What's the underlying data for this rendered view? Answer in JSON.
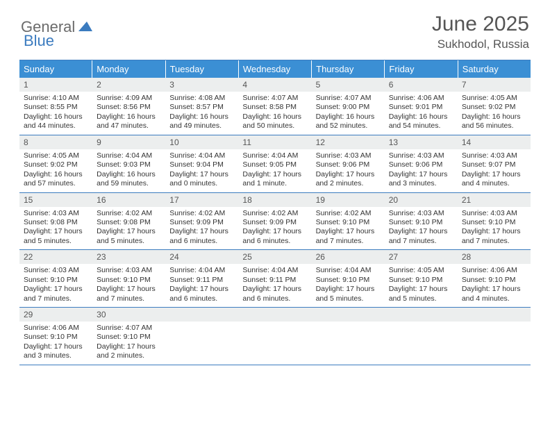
{
  "colors": {
    "header_blue": "#3b8fd4",
    "rule_blue": "#3b7bbf",
    "daynum_bg": "#eceeee",
    "text": "#333333",
    "title_text": "#555555",
    "white": "#ffffff"
  },
  "typography": {
    "title_fontsize": 30,
    "location_fontsize": 17,
    "dayhead_fontsize": 13,
    "daynum_fontsize": 12,
    "body_fontsize": 10.5
  },
  "logo": {
    "part1": "General",
    "part2": "Blue"
  },
  "title": "June 2025",
  "location": "Sukhodol, Russia",
  "day_headers": [
    "Sunday",
    "Monday",
    "Tuesday",
    "Wednesday",
    "Thursday",
    "Friday",
    "Saturday"
  ],
  "weeks": [
    [
      {
        "n": "1",
        "sr": "4:10 AM",
        "ss": "8:55 PM",
        "dl": "16 hours and 44 minutes."
      },
      {
        "n": "2",
        "sr": "4:09 AM",
        "ss": "8:56 PM",
        "dl": "16 hours and 47 minutes."
      },
      {
        "n": "3",
        "sr": "4:08 AM",
        "ss": "8:57 PM",
        "dl": "16 hours and 49 minutes."
      },
      {
        "n": "4",
        "sr": "4:07 AM",
        "ss": "8:58 PM",
        "dl": "16 hours and 50 minutes."
      },
      {
        "n": "5",
        "sr": "4:07 AM",
        "ss": "9:00 PM",
        "dl": "16 hours and 52 minutes."
      },
      {
        "n": "6",
        "sr": "4:06 AM",
        "ss": "9:01 PM",
        "dl": "16 hours and 54 minutes."
      },
      {
        "n": "7",
        "sr": "4:05 AM",
        "ss": "9:02 PM",
        "dl": "16 hours and 56 minutes."
      }
    ],
    [
      {
        "n": "8",
        "sr": "4:05 AM",
        "ss": "9:02 PM",
        "dl": "16 hours and 57 minutes."
      },
      {
        "n": "9",
        "sr": "4:04 AM",
        "ss": "9:03 PM",
        "dl": "16 hours and 59 minutes."
      },
      {
        "n": "10",
        "sr": "4:04 AM",
        "ss": "9:04 PM",
        "dl": "17 hours and 0 minutes."
      },
      {
        "n": "11",
        "sr": "4:04 AM",
        "ss": "9:05 PM",
        "dl": "17 hours and 1 minute."
      },
      {
        "n": "12",
        "sr": "4:03 AM",
        "ss": "9:06 PM",
        "dl": "17 hours and 2 minutes."
      },
      {
        "n": "13",
        "sr": "4:03 AM",
        "ss": "9:06 PM",
        "dl": "17 hours and 3 minutes."
      },
      {
        "n": "14",
        "sr": "4:03 AM",
        "ss": "9:07 PM",
        "dl": "17 hours and 4 minutes."
      }
    ],
    [
      {
        "n": "15",
        "sr": "4:03 AM",
        "ss": "9:08 PM",
        "dl": "17 hours and 5 minutes."
      },
      {
        "n": "16",
        "sr": "4:02 AM",
        "ss": "9:08 PM",
        "dl": "17 hours and 5 minutes."
      },
      {
        "n": "17",
        "sr": "4:02 AM",
        "ss": "9:09 PM",
        "dl": "17 hours and 6 minutes."
      },
      {
        "n": "18",
        "sr": "4:02 AM",
        "ss": "9:09 PM",
        "dl": "17 hours and 6 minutes."
      },
      {
        "n": "19",
        "sr": "4:02 AM",
        "ss": "9:10 PM",
        "dl": "17 hours and 7 minutes."
      },
      {
        "n": "20",
        "sr": "4:03 AM",
        "ss": "9:10 PM",
        "dl": "17 hours and 7 minutes."
      },
      {
        "n": "21",
        "sr": "4:03 AM",
        "ss": "9:10 PM",
        "dl": "17 hours and 7 minutes."
      }
    ],
    [
      {
        "n": "22",
        "sr": "4:03 AM",
        "ss": "9:10 PM",
        "dl": "17 hours and 7 minutes."
      },
      {
        "n": "23",
        "sr": "4:03 AM",
        "ss": "9:10 PM",
        "dl": "17 hours and 7 minutes."
      },
      {
        "n": "24",
        "sr": "4:04 AM",
        "ss": "9:11 PM",
        "dl": "17 hours and 6 minutes."
      },
      {
        "n": "25",
        "sr": "4:04 AM",
        "ss": "9:11 PM",
        "dl": "17 hours and 6 minutes."
      },
      {
        "n": "26",
        "sr": "4:04 AM",
        "ss": "9:10 PM",
        "dl": "17 hours and 5 minutes."
      },
      {
        "n": "27",
        "sr": "4:05 AM",
        "ss": "9:10 PM",
        "dl": "17 hours and 5 minutes."
      },
      {
        "n": "28",
        "sr": "4:06 AM",
        "ss": "9:10 PM",
        "dl": "17 hours and 4 minutes."
      }
    ],
    [
      {
        "n": "29",
        "sr": "4:06 AM",
        "ss": "9:10 PM",
        "dl": "17 hours and 3 minutes."
      },
      {
        "n": "30",
        "sr": "4:07 AM",
        "ss": "9:10 PM",
        "dl": "17 hours and 2 minutes."
      },
      null,
      null,
      null,
      null,
      null
    ]
  ],
  "labels": {
    "sunrise": "Sunrise: ",
    "sunset": "Sunset: ",
    "daylight": "Daylight: "
  }
}
